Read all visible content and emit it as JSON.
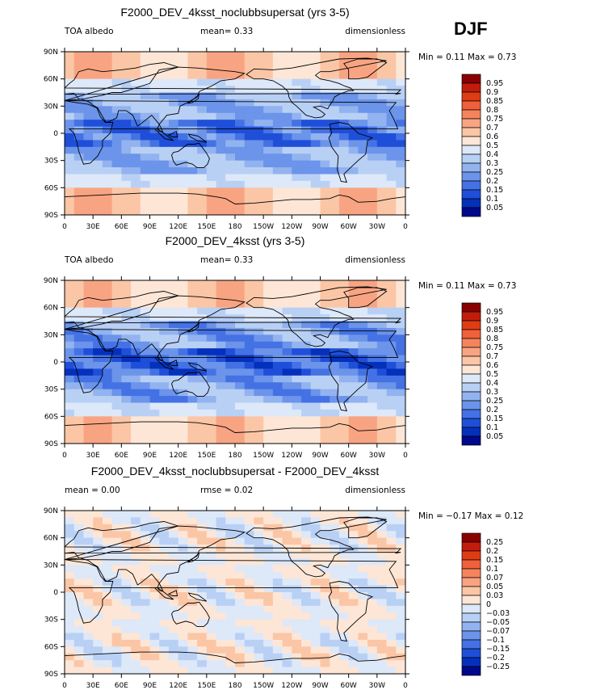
{
  "season_label": "DJF",
  "chart_data": [
    {
      "type": "heatmap",
      "title": "F2000_DEV_4ksst_noclubbsupersat (yrs 3-5)",
      "left_string": "TOA albedo",
      "center_string": "mean=    0.33",
      "right_string": "dimensionless",
      "min_max": "Min =   0.11  Max =   0.73",
      "y_ticks": [
        "90N",
        "60N",
        "30N",
        "0",
        "30S",
        "60S",
        "90S"
      ],
      "x_ticks": [
        "0",
        "30E",
        "60E",
        "90E",
        "120E",
        "150E",
        "180",
        "150W",
        "120W",
        "90W",
        "60W",
        "30W",
        "0"
      ],
      "levels": [
        "0.95",
        "0.9",
        "0.85",
        "0.8",
        "0.75",
        "0.7",
        "0.6",
        "0.5",
        "0.4",
        "0.3",
        "0.25",
        "0.2",
        "0.15",
        "0.1",
        "0.05"
      ],
      "colors": [
        "#8a0000",
        "#c21d0c",
        "#e03c14",
        "#f0603a",
        "#f5845c",
        "#f8a482",
        "#fbc6a6",
        "#fde6d6",
        "#dde8f9",
        "#b9d0f5",
        "#92b3ef",
        "#6b94ea",
        "#4472e4",
        "#1f4fd8",
        "#0530bb",
        "#00098b"
      ],
      "field": "albedo",
      "variant": "pert"
    },
    {
      "type": "heatmap",
      "title": "F2000_DEV_4ksst (yrs 3-5)",
      "left_string": "TOA albedo",
      "center_string": "mean=    0.33",
      "right_string": "dimensionless",
      "min_max": "Min =   0.11  Max =   0.73",
      "y_ticks": [
        "90N",
        "60N",
        "30N",
        "0",
        "30S",
        "60S",
        "90S"
      ],
      "x_ticks": [
        "0",
        "30E",
        "60E",
        "90E",
        "120E",
        "150E",
        "180",
        "150W",
        "120W",
        "90W",
        "60W",
        "30W",
        "0"
      ],
      "levels": [
        "0.95",
        "0.9",
        "0.85",
        "0.8",
        "0.75",
        "0.7",
        "0.6",
        "0.5",
        "0.4",
        "0.3",
        "0.25",
        "0.2",
        "0.15",
        "0.1",
        "0.05"
      ],
      "colors": [
        "#8a0000",
        "#c21d0c",
        "#e03c14",
        "#f0603a",
        "#f5845c",
        "#f8a482",
        "#fbc6a6",
        "#fde6d6",
        "#dde8f9",
        "#b9d0f5",
        "#92b3ef",
        "#6b94ea",
        "#4472e4",
        "#1f4fd8",
        "#0530bb",
        "#00098b"
      ],
      "field": "albedo",
      "variant": "ctrl"
    },
    {
      "type": "heatmap",
      "title": "F2000_DEV_4ksst_noclubbsupersat - F2000_DEV_4ksst",
      "left_string": "mean =    0.00",
      "center_string": "rmse =    0.02",
      "right_string": "dimensionless",
      "min_max": "Min =  −0.17  Max =   0.12",
      "y_ticks": [
        "90N",
        "60N",
        "30N",
        "0",
        "30S",
        "60S",
        "90S"
      ],
      "x_ticks": [
        "0",
        "30E",
        "60E",
        "90E",
        "120E",
        "150E",
        "180",
        "150W",
        "120W",
        "90W",
        "60W",
        "30W",
        "0"
      ],
      "levels": [
        "0.25",
        "0.2",
        "0.15",
        "0.1",
        "0.07",
        "0.05",
        "0.03",
        "0",
        "−0.03",
        "−0.05",
        "−0.07",
        "−0.1",
        "−0.15",
        "−0.2",
        "−0.25"
      ],
      "colors": [
        "#8a0000",
        "#c21d0c",
        "#e03c14",
        "#f0603a",
        "#f5845c",
        "#f8a482",
        "#fbc6a6",
        "#fde6d6",
        "#dde8f9",
        "#b9d0f5",
        "#92b3ef",
        "#6b94ea",
        "#4472e4",
        "#1f4fd8",
        "#0530bb",
        "#00098b"
      ],
      "field": "difference",
      "variant": "diff"
    }
  ]
}
